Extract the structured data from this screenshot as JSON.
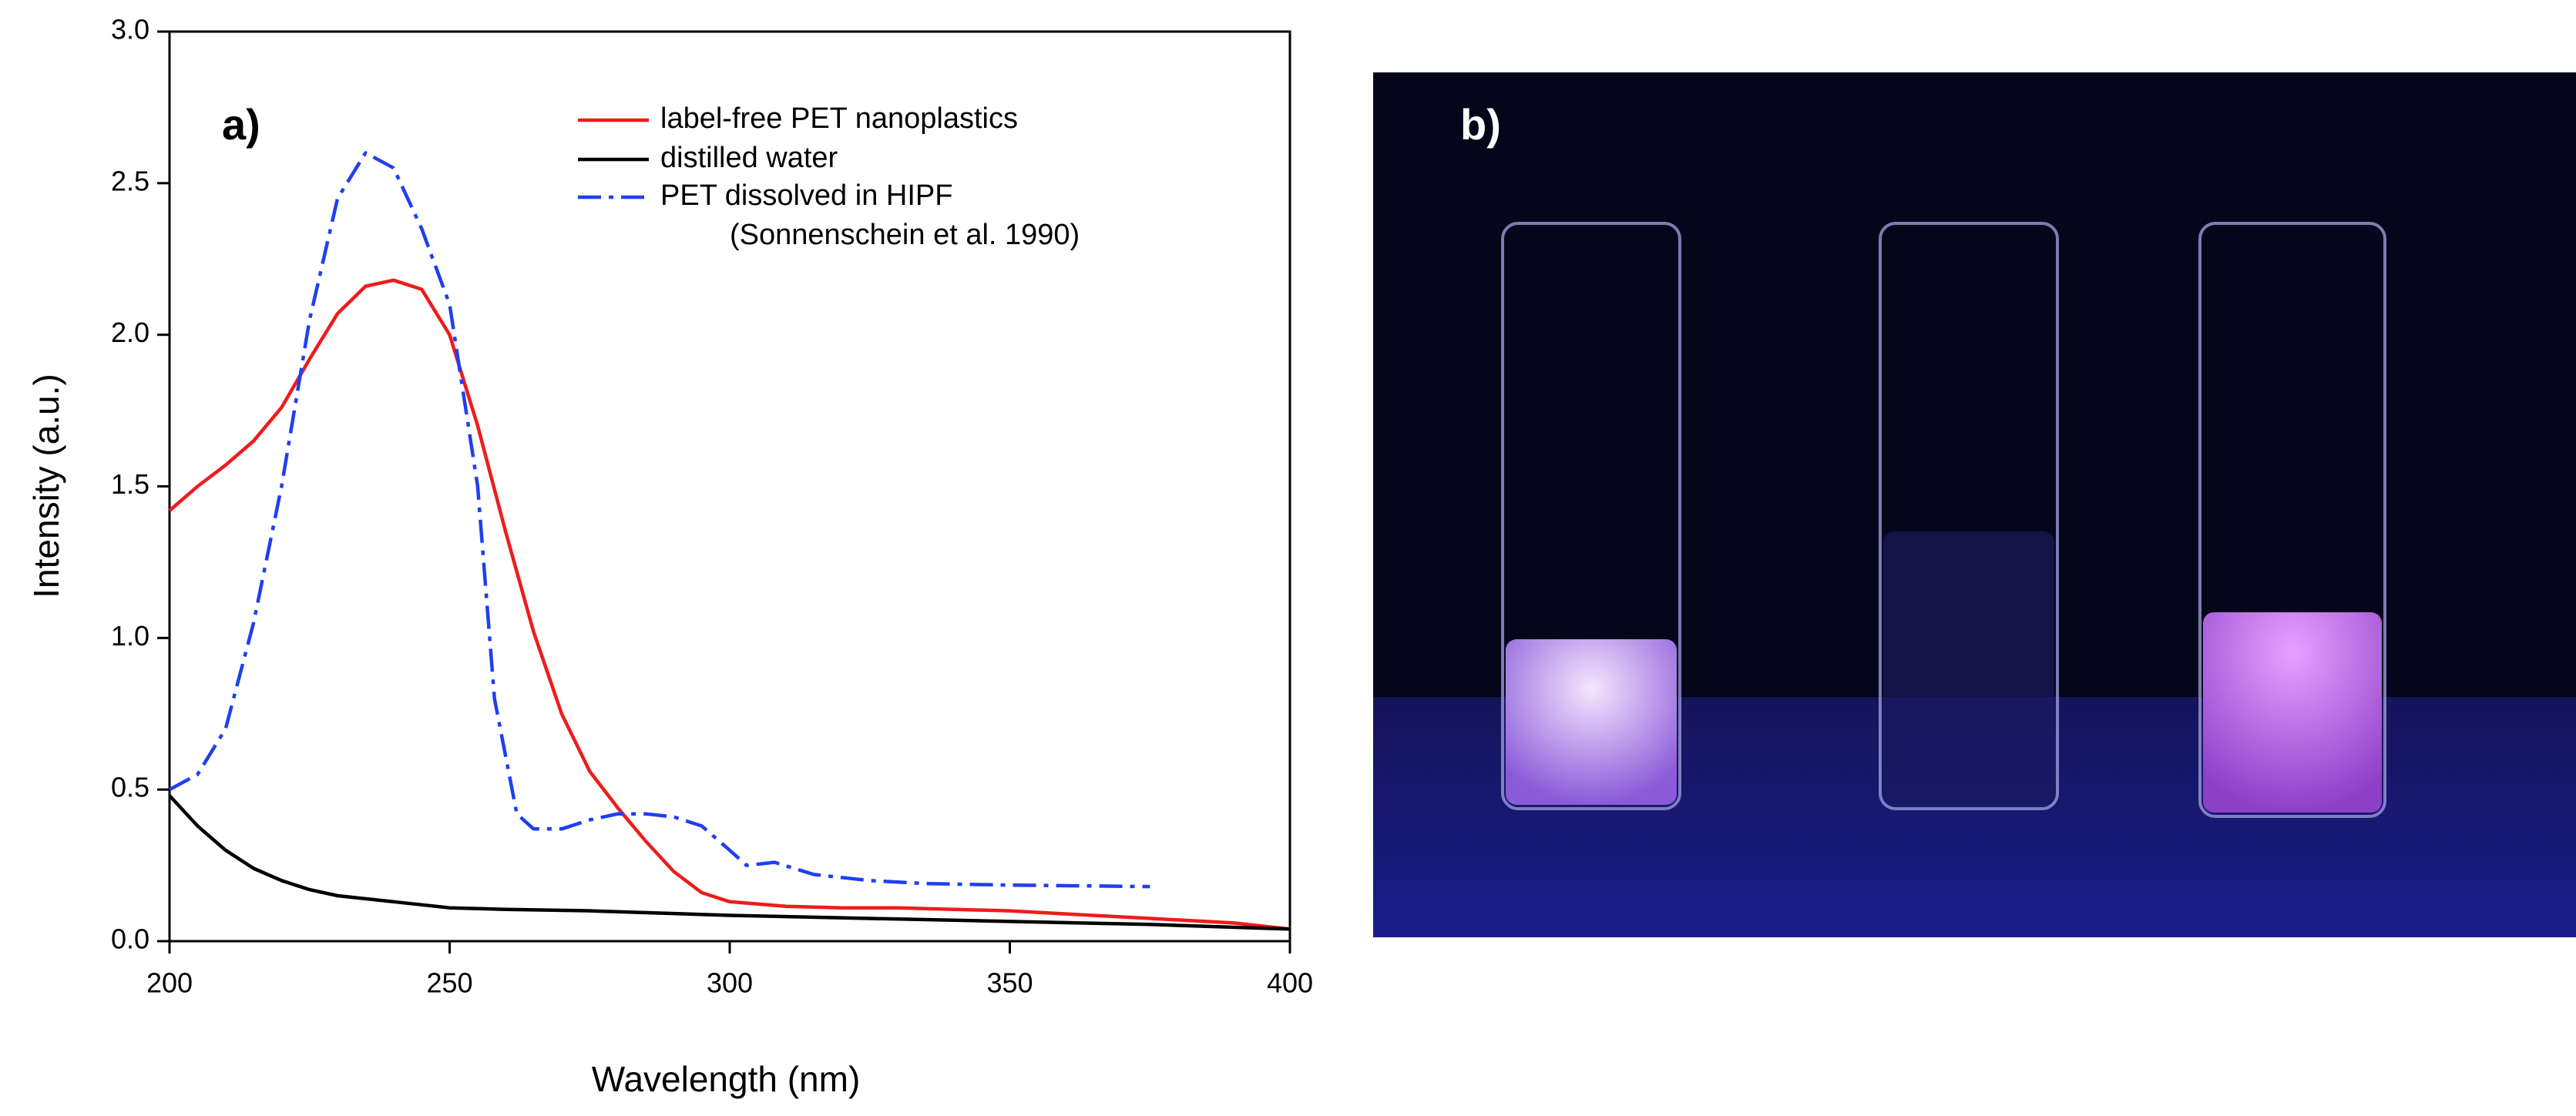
{
  "chart_data": {
    "type": "line",
    "xlabel": "Wavelength (nm)",
    "ylabel": "Intensity (a.u.)",
    "panel_label": "a)",
    "xlim": [
      200,
      400
    ],
    "xticks": [
      200,
      250,
      300,
      350,
      400
    ],
    "ylim": [
      0,
      3
    ],
    "yticks": [
      {
        "value": 0,
        "label": "0.0"
      },
      0.5,
      {
        "value": 1,
        "label": "1.0"
      },
      1.5,
      {
        "value": 2,
        "label": "2.0"
      },
      2.5,
      {
        "value": 3,
        "label": "3.0"
      }
    ],
    "series": [
      {
        "name": "label-free PET nanoplastics",
        "color": "#ee1c1c",
        "dash": "solid",
        "x": [
          200,
          205,
          210,
          215,
          220,
          225,
          230,
          235,
          240,
          245,
          250,
          255,
          260,
          265,
          270,
          275,
          280,
          285,
          290,
          295,
          300,
          310,
          320,
          330,
          340,
          350,
          360,
          370,
          380,
          390,
          400
        ],
        "values": [
          1.42,
          1.5,
          1.57,
          1.65,
          1.76,
          1.92,
          2.07,
          2.16,
          2.18,
          2.15,
          2.0,
          1.7,
          1.35,
          1.02,
          0.75,
          0.56,
          0.44,
          0.33,
          0.23,
          0.16,
          0.13,
          0.115,
          0.11,
          0.11,
          0.105,
          0.1,
          0.09,
          0.08,
          0.07,
          0.06,
          0.04
        ]
      },
      {
        "name": "distilled water",
        "color": "#000000",
        "dash": "solid",
        "x": [
          200,
          205,
          210,
          215,
          220,
          225,
          230,
          240,
          250,
          260,
          275,
          300,
          325,
          350,
          375,
          400
        ],
        "values": [
          0.48,
          0.38,
          0.3,
          0.24,
          0.2,
          0.17,
          0.15,
          0.13,
          0.11,
          0.105,
          0.1,
          0.085,
          0.075,
          0.065,
          0.055,
          0.04
        ]
      },
      {
        "name": "PET dissolved in HIPF",
        "note": "(Sonnenschein et al. 1990)",
        "color": "#1f3ff0",
        "dash": "dashdot",
        "x": [
          200,
          205,
          210,
          215,
          220,
          225,
          230,
          235,
          240,
          245,
          250,
          255,
          258,
          262,
          265,
          270,
          275,
          280,
          285,
          290,
          295,
          300,
          303,
          308,
          315,
          325,
          335,
          350,
          375
        ],
        "values": [
          0.5,
          0.55,
          0.7,
          1.05,
          1.5,
          2.05,
          2.45,
          2.6,
          2.55,
          2.35,
          2.1,
          1.5,
          0.8,
          0.42,
          0.37,
          0.37,
          0.4,
          0.42,
          0.42,
          0.41,
          0.38,
          0.3,
          0.25,
          0.26,
          0.22,
          0.2,
          0.19,
          0.185,
          0.18
        ]
      }
    ]
  },
  "photo_panel": {
    "label": "b)"
  }
}
